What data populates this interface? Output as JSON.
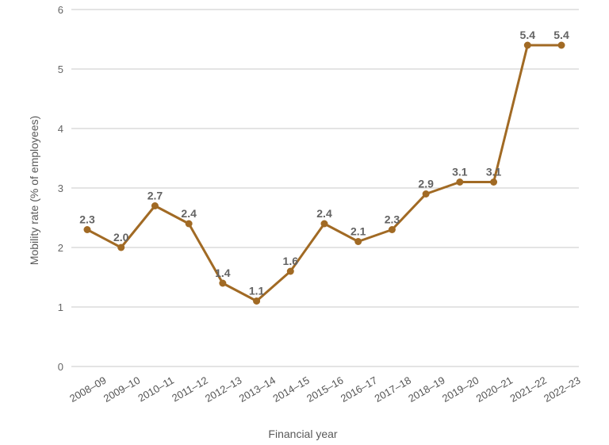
{
  "chart_data": {
    "type": "line",
    "title": "",
    "xlabel": "Financial year",
    "ylabel": "Mobility rate (% of employees)",
    "categories": [
      "2008–09",
      "2009–10",
      "2010–11",
      "2011–12",
      "2012–13",
      "2013–14",
      "2014–15",
      "2015–16",
      "2016–17",
      "2017–18",
      "2018–19",
      "2019–20",
      "2020–21",
      "2021–22",
      "2022–23"
    ],
    "series": [
      {
        "values": [
          2.3,
          2.0,
          2.7,
          2.4,
          1.4,
          1.1,
          1.6,
          2.4,
          2.1,
          2.3,
          2.9,
          3.1,
          3.1,
          5.4,
          5.4
        ],
        "labels": [
          "2.3",
          "2.0",
          "2.7",
          "2.4",
          "1.4",
          "1.1",
          "1.6",
          "2.4",
          "2.1",
          "2.3",
          "2.9",
          "3.1",
          "3.1",
          "5.4",
          "5.4"
        ],
        "color": "#a16a24"
      }
    ],
    "ylim": [
      0,
      6
    ],
    "yticks": [
      "0",
      "1",
      "2",
      "3",
      "4",
      "5",
      "6"
    ],
    "grid": true,
    "line_color": "#a16a24",
    "grid_color": "#c8c8c8"
  }
}
